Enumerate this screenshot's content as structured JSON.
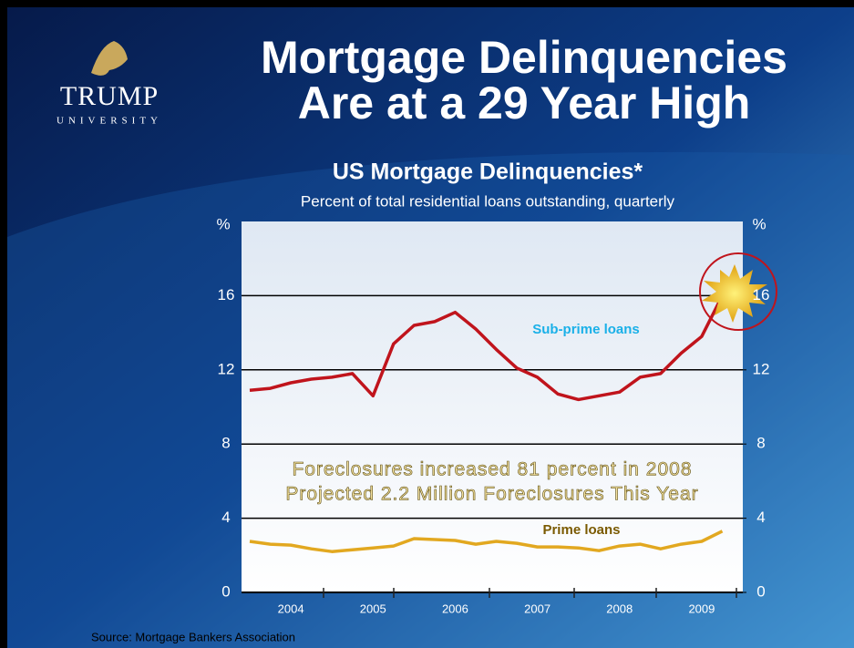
{
  "header": {
    "brand": "TRUMP",
    "brand_sub": "UNIVERSITY",
    "title_line1": "Mortgage Delinquencies",
    "title_line2": "Are at a 29 Year High"
  },
  "chart_data": {
    "type": "line",
    "title": "US Mortgage Delinquencies*",
    "subtitle": "Percent of total residential loans outstanding, quarterly",
    "y_label": "%",
    "y2_label": "%",
    "x": [
      2004.0,
      2004.25,
      2004.5,
      2004.75,
      2005.0,
      2005.25,
      2005.5,
      2005.75,
      2006.0,
      2006.25,
      2006.5,
      2006.75,
      2007.0,
      2007.25,
      2007.5,
      2007.75,
      2008.0,
      2008.25,
      2008.5,
      2008.75,
      2009.0,
      2009.25,
      2009.5,
      2009.75
    ],
    "series": [
      {
        "name": "Sub-prime loans",
        "color": "#c0141c",
        "values": [
          10.9,
          11.0,
          11.3,
          11.5,
          11.6,
          11.8,
          10.6,
          13.4,
          14.4,
          14.6,
          15.1,
          14.2,
          13.1,
          12.1,
          11.6,
          10.7,
          10.4,
          10.6,
          10.8,
          11.6,
          11.8,
          12.9,
          13.8,
          16.0
        ]
      },
      {
        "name": "Prime loans",
        "color": "#e2a820",
        "values": [
          2.75,
          2.6,
          2.55,
          2.35,
          2.2,
          2.3,
          2.4,
          2.5,
          2.9,
          2.85,
          2.8,
          2.6,
          2.75,
          2.65,
          2.45,
          2.45,
          2.4,
          2.25,
          2.5,
          2.6,
          2.35,
          2.6,
          2.75,
          3.3
        ]
      }
    ],
    "xlim": [
      2003.9,
      2010.0
    ],
    "xticks": [
      {
        "value": 2004.5,
        "label": "2004"
      },
      {
        "value": 2005.5,
        "label": "2005"
      },
      {
        "value": 2006.5,
        "label": "2006"
      },
      {
        "value": 2007.5,
        "label": "2007"
      },
      {
        "value": 2008.5,
        "label": "2008"
      },
      {
        "value": 2009.5,
        "label": "2009"
      }
    ],
    "ylim": [
      0,
      20
    ],
    "yticks": [
      0,
      4,
      8,
      12,
      16
    ],
    "y2lim": [
      0,
      20
    ],
    "y2ticks": [
      0,
      4,
      8,
      12,
      16
    ],
    "grid": true,
    "annotations": [
      "Foreclosures increased 81 percent in 2008",
      "Projected 2.2 Million Foreclosures This Year"
    ],
    "source": "Source: Mortgage Bankers Association"
  }
}
